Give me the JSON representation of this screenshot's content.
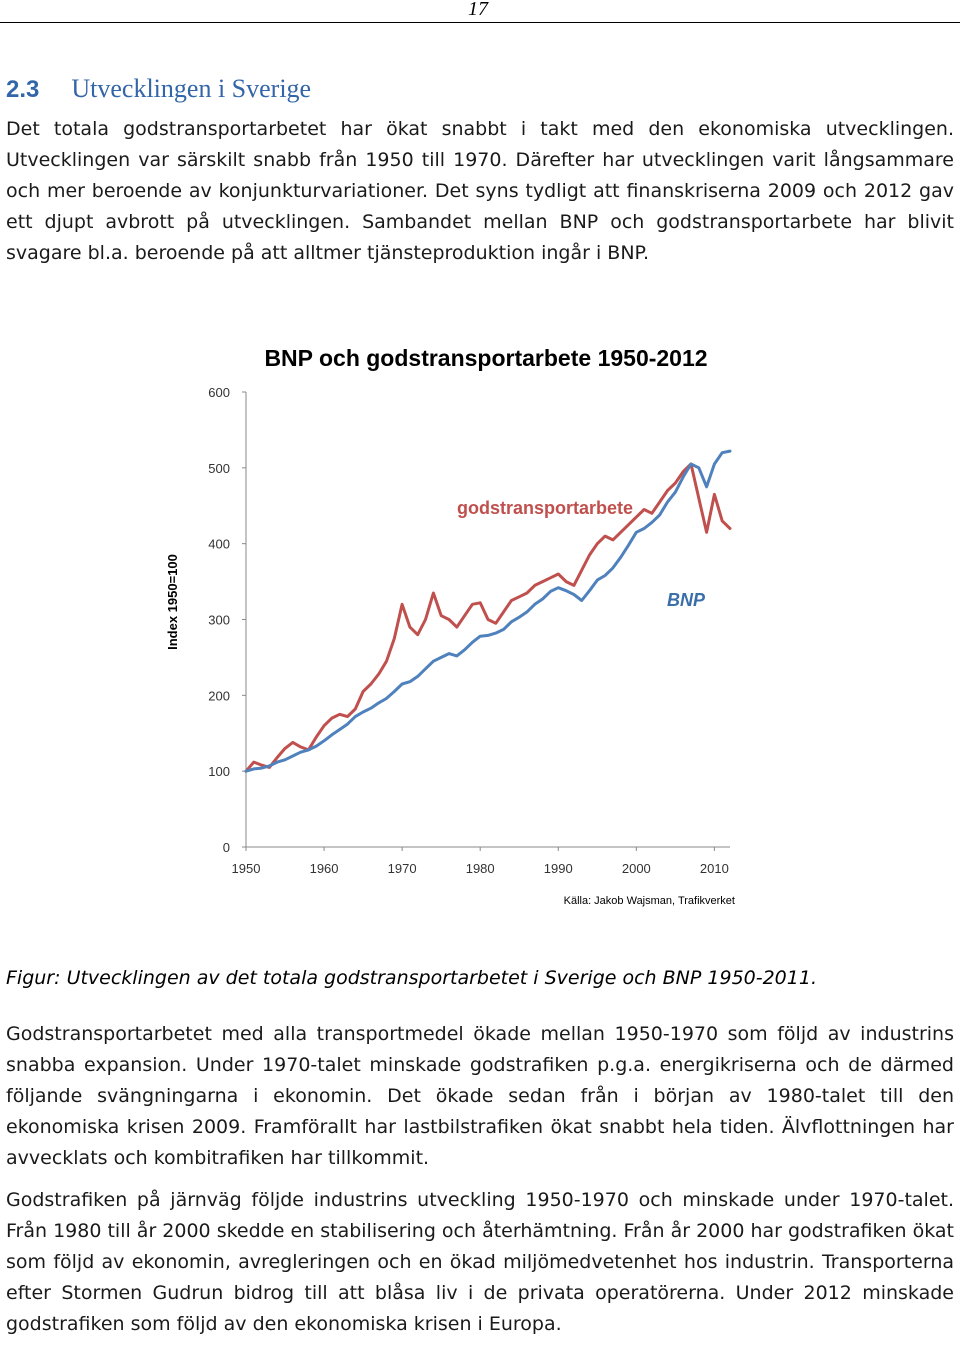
{
  "page": {
    "number": "17"
  },
  "section": {
    "number": "2.3",
    "title": "Utvecklingen i Sverige"
  },
  "paragraphs": {
    "intro": "Det totala godstransportarbetet har ökat snabbt i takt med den ekonomiska utvecklingen. Utvecklingen var särskilt snabb från 1950 till 1970. Därefter har utvecklingen varit långsammare och mer beroende av konjunkturvariationer. Det syns tydligt att finanskriserna 2009 och 2012 gav ett djupt avbrott på utvecklingen. Sambandet mellan BNP och godstransportarbete har blivit svagare bl.a. beroende på att alltmer tjänsteproduktion ingår i BNP.",
    "after_figure_1": "Godstransportarbetet med alla transportmedel ökade mellan 1950-1970 som följd av industrins snabba expansion. Under 1970-talet minskade godstrafiken p.g.a. energikriserna och de därmed följande svängningarna i ekonomin. Det ökade sedan från i början av 1980-talet till den ekonomiska krisen 2009. Framförallt har lastbilstrafiken ökat snabbt hela tiden. Älvflottningen har avvecklats och kombitrafiken har tillkommit.",
    "after_figure_2": "Godstrafiken på järnväg följde industrins utveckling 1950-1970 och minskade under 1970-talet. Från 1980 till år 2000 skedde en stabilisering och återhämtning. Från år 2000 har godstrafiken ökat som följd av ekonomin, avregleringen och en ökad miljömedvetenhet hos industrin. Transporterna efter Stormen Gudrun bidrog till att blåsa liv i de privata operatörerna. Under 2012 minskade godstrafiken som följd av den ekonomiska krisen i Europa."
  },
  "figure": {
    "caption": "Figur: Utvecklingen av det totala godstransportarbetet i Sverige och BNP 1950-2011."
  },
  "chart_data": {
    "type": "line",
    "title": "BNP och godstransportarbete 1950-2012",
    "ylabel": "Index 1950=100",
    "xlabel": "",
    "source": "Källa: Jakob Wajsman, Trafikverket",
    "xlim": [
      1950,
      2012
    ],
    "ylim": [
      0,
      600
    ],
    "xticks": [
      "1950",
      "1960",
      "1970",
      "1980",
      "1990",
      "2000",
      "2010"
    ],
    "yticks": [
      "0",
      "100",
      "200",
      "300",
      "400",
      "500",
      "600"
    ],
    "grid": false,
    "colors": {
      "gods": "#c0504d",
      "bnp": "#4f81bd"
    },
    "series": [
      {
        "name": "godstransportarbete",
        "x": [
          1950,
          1951,
          1952,
          1953,
          1954,
          1955,
          1956,
          1957,
          1958,
          1959,
          1960,
          1961,
          1962,
          1963,
          1964,
          1965,
          1966,
          1967,
          1968,
          1969,
          1970,
          1971,
          1972,
          1973,
          1974,
          1975,
          1976,
          1977,
          1978,
          1979,
          1980,
          1981,
          1982,
          1983,
          1984,
          1985,
          1986,
          1987,
          1988,
          1989,
          1990,
          1991,
          1992,
          1993,
          1994,
          1995,
          1996,
          1997,
          1998,
          1999,
          2000,
          2001,
          2002,
          2003,
          2004,
          2005,
          2006,
          2007,
          2008,
          2009,
          2010,
          2011,
          2012
        ],
        "values": [
          100,
          112,
          108,
          105,
          118,
          130,
          138,
          132,
          128,
          145,
          160,
          170,
          175,
          172,
          182,
          205,
          215,
          228,
          245,
          275,
          320,
          290,
          280,
          300,
          335,
          305,
          300,
          290,
          305,
          320,
          322,
          300,
          295,
          310,
          325,
          330,
          335,
          345,
          350,
          355,
          360,
          350,
          345,
          365,
          385,
          400,
          410,
          405,
          415,
          425,
          435,
          445,
          440,
          455,
          470,
          480,
          495,
          505,
          460,
          415,
          465,
          430,
          420
        ]
      },
      {
        "name": "BNP",
        "x": [
          1950,
          1951,
          1952,
          1953,
          1954,
          1955,
          1956,
          1957,
          1958,
          1959,
          1960,
          1961,
          1962,
          1963,
          1964,
          1965,
          1966,
          1967,
          1968,
          1969,
          1970,
          1971,
          1972,
          1973,
          1974,
          1975,
          1976,
          1977,
          1978,
          1979,
          1980,
          1981,
          1982,
          1983,
          1984,
          1985,
          1986,
          1987,
          1988,
          1989,
          1990,
          1991,
          1992,
          1993,
          1994,
          1995,
          1996,
          1997,
          1998,
          1999,
          2000,
          2001,
          2002,
          2003,
          2004,
          2005,
          2006,
          2007,
          2008,
          2009,
          2010,
          2011,
          2012
        ],
        "values": [
          100,
          103,
          104,
          107,
          112,
          115,
          120,
          125,
          128,
          133,
          140,
          148,
          155,
          162,
          172,
          178,
          183,
          190,
          196,
          205,
          215,
          218,
          225,
          235,
          245,
          250,
          255,
          252,
          260,
          270,
          278,
          279,
          282,
          287,
          297,
          303,
          310,
          320,
          327,
          337,
          342,
          338,
          333,
          325,
          338,
          352,
          358,
          368,
          382,
          398,
          415,
          420,
          428,
          438,
          455,
          468,
          488,
          505,
          500,
          475,
          505,
          520,
          522
        ]
      }
    ],
    "annotations": [
      {
        "text": "godstransportarbete",
        "series": "godstransportarbete"
      },
      {
        "text": "BNP",
        "series": "BNP"
      }
    ]
  }
}
